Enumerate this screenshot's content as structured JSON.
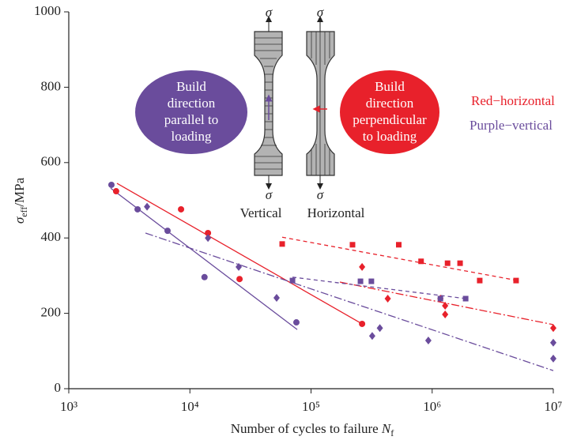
{
  "chart_data": {
    "type": "scatter",
    "x_label": [
      "Number of cycles to failure ",
      "N",
      "f"
    ],
    "y_label": [
      "σ",
      "eff",
      "/MPa"
    ],
    "xscale": "log",
    "xlim": [
      1000,
      10000000
    ],
    "ylim": [
      0,
      1000
    ],
    "xticks": [
      {
        "value": 1000,
        "label": "10³"
      },
      {
        "value": 10000,
        "label": "10⁴"
      },
      {
        "value": 100000,
        "label": "10⁵"
      },
      {
        "value": 1000000,
        "label": "10⁶"
      },
      {
        "value": 10000000,
        "label": "10⁷"
      }
    ],
    "yticks": [
      0,
      200,
      400,
      600,
      800,
      1000
    ],
    "series": [
      {
        "marker": "circle",
        "color": "#e8212b",
        "x": [
          2460,
          8450,
          14100,
          25700,
          264000
        ],
        "values": [
          524,
          476,
          413,
          291,
          172
        ]
      },
      {
        "marker": "circle",
        "color": "#6a4c9c",
        "x": [
          2250,
          3700,
          6540,
          13200,
          75700
        ],
        "values": [
          541,
          476,
          419,
          296,
          176
        ]
      },
      {
        "marker": "diamond",
        "color": "#6a4c9c",
        "x": [
          4430,
          14100,
          25300,
          52000,
          320000,
          370000,
          930000,
          10000000,
          10000000
        ],
        "values": [
          483,
          400,
          323,
          241,
          140,
          161,
          128,
          122,
          80
        ]
      },
      {
        "marker": "diamond",
        "color": "#e8212b",
        "x": [
          264000,
          430000,
          1170000,
          1280000,
          1280000,
          10000000
        ],
        "values": [
          323,
          239,
          239,
          220,
          197,
          161
        ]
      },
      {
        "marker": "square",
        "color": "#e8212b",
        "x": [
          57800,
          220000,
          530000,
          810000,
          1340000,
          1700000,
          2470000,
          4930000
        ],
        "values": [
          384,
          382,
          382,
          338,
          333,
          333,
          287,
          287
        ]
      },
      {
        "marker": "square",
        "color": "#6a4c9c",
        "x": [
          70300,
          256000,
          315000,
          1170000,
          1890000
        ],
        "values": [
          287,
          285,
          285,
          239,
          239
        ]
      }
    ],
    "fit_lines": [
      {
        "color": "#e8212b",
        "style": "solid",
        "x": [
          2500,
          264000
        ],
        "values": [
          545,
          172
        ]
      },
      {
        "color": "#6a4c9c",
        "style": "solid",
        "x": [
          2220,
          76900
        ],
        "values": [
          532,
          157
        ]
      },
      {
        "color": "#6a4c9c",
        "style": "dashdot",
        "x": [
          4300,
          10000000
        ],
        "values": [
          413,
          48
        ]
      },
      {
        "color": "#e8212b",
        "style": "dashdot",
        "x": [
          173000,
          10000000
        ],
        "values": [
          283,
          170
        ]
      },
      {
        "color": "#e8212b",
        "style": "dashed",
        "x": [
          57800,
          5080000
        ],
        "values": [
          402,
          287
        ]
      },
      {
        "color": "#6a4c9c",
        "style": "dashed",
        "x": [
          70300,
          1910000
        ],
        "values": [
          296,
          239
        ]
      }
    ],
    "annotations": {
      "left_bubble": [
        "Build",
        "direction",
        "parallel to",
        "loading"
      ],
      "right_bubble": [
        "Build",
        "direction",
        "perpendicular",
        "to loading"
      ],
      "legend_red": "Red−horizontal",
      "legend_purple": "Purple−vertical",
      "sigma": "σ",
      "specimen_vertical": "Vertical",
      "specimen_horizontal": "Horizontal"
    }
  }
}
